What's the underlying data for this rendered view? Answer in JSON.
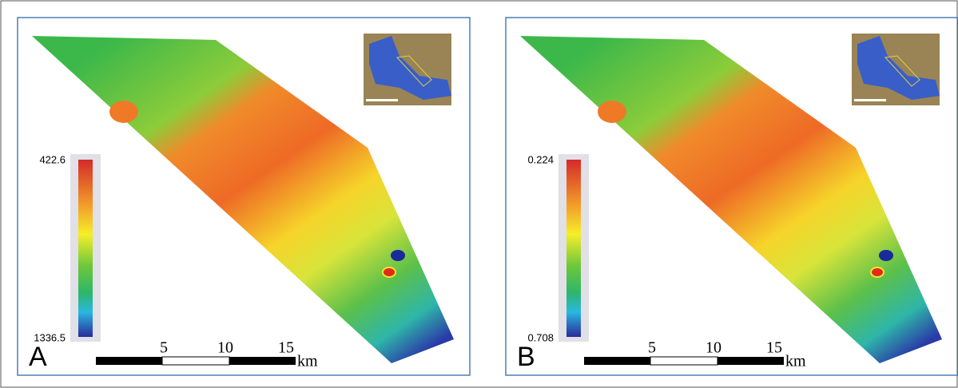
{
  "panels": [
    {
      "label": "A",
      "colorbar": {
        "top": 422.6,
        "bottom": 1336.5
      },
      "scale_bar": {
        "ticks": [
          5,
          10,
          15
        ],
        "unit": "km"
      }
    },
    {
      "label": "B",
      "colorbar": {
        "top": 0.224,
        "bottom": 0.708
      },
      "scale_bar": {
        "ticks": [
          5,
          10,
          15
        ],
        "unit": "km"
      }
    }
  ]
}
